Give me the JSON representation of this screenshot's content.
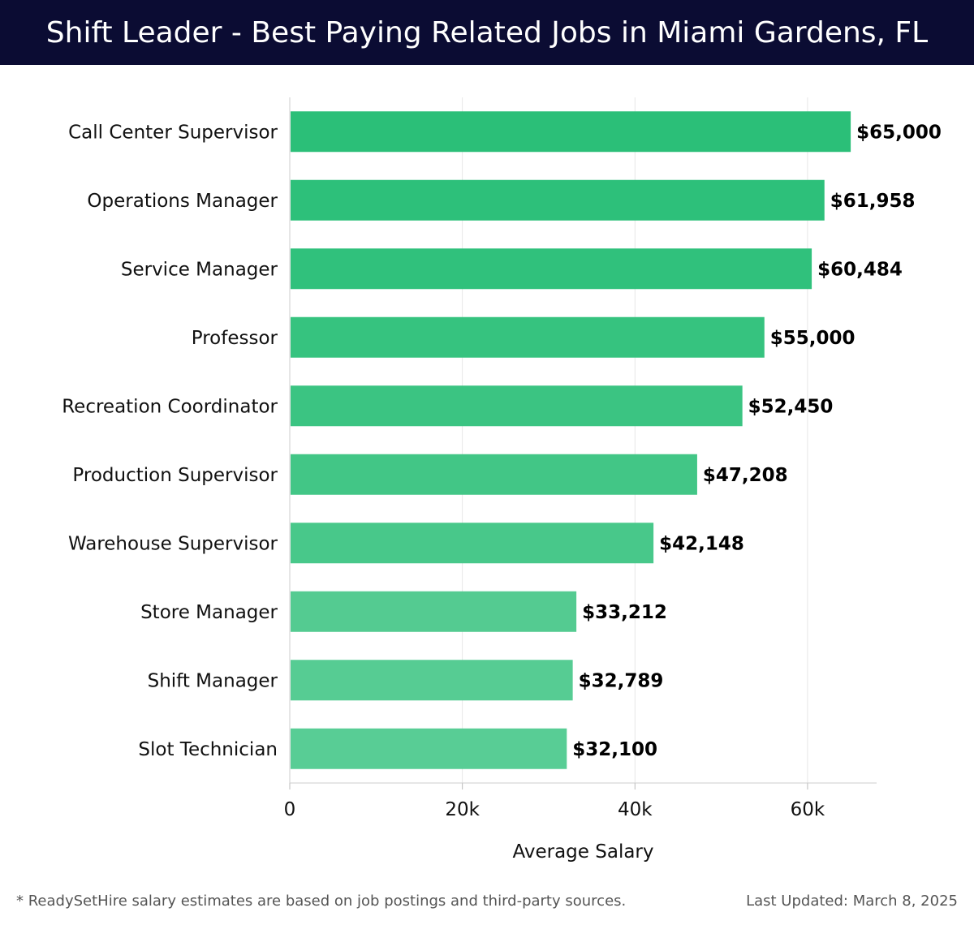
{
  "header": {
    "title": "Shift Leader - Best Paying Related Jobs in Miami Gardens, FL"
  },
  "chart_data": {
    "type": "bar",
    "orientation": "horizontal",
    "title": "Shift Leader - Best Paying Related Jobs in Miami Gardens, FL",
    "xlabel": "Average Salary",
    "ylabel": "",
    "xlim": [
      0,
      68000
    ],
    "xticks": [
      0,
      20000,
      40000,
      60000
    ],
    "xtick_labels": [
      "0",
      "20k",
      "40k",
      "60k"
    ],
    "grid": "vertical",
    "categories": [
      "Call Center Supervisor",
      "Operations Manager",
      "Service Manager",
      "Professor",
      "Recreation Coordinator",
      "Production Supervisor",
      "Warehouse Supervisor",
      "Store Manager",
      "Shift Manager",
      "Slot Technician"
    ],
    "values": [
      65000,
      61958,
      60484,
      55000,
      52450,
      47208,
      42148,
      33212,
      32789,
      32100
    ],
    "value_labels": [
      "$65,000",
      "$61,958",
      "$60,484",
      "$55,000",
      "$52,450",
      "$47,208",
      "$42,148",
      "$33,212",
      "$32,789",
      "$32,100"
    ],
    "bar_colors": [
      "#2bbf78",
      "#2dc07a",
      "#30c17c",
      "#36c37f",
      "#3bc482",
      "#42c686",
      "#48c88a",
      "#54cb91",
      "#56cc93",
      "#58cd95"
    ]
  },
  "footer": {
    "note": "* ReadySetHire salary estimates are based on job postings and third-party sources.",
    "updated": "Last Updated: March 8, 2025"
  }
}
